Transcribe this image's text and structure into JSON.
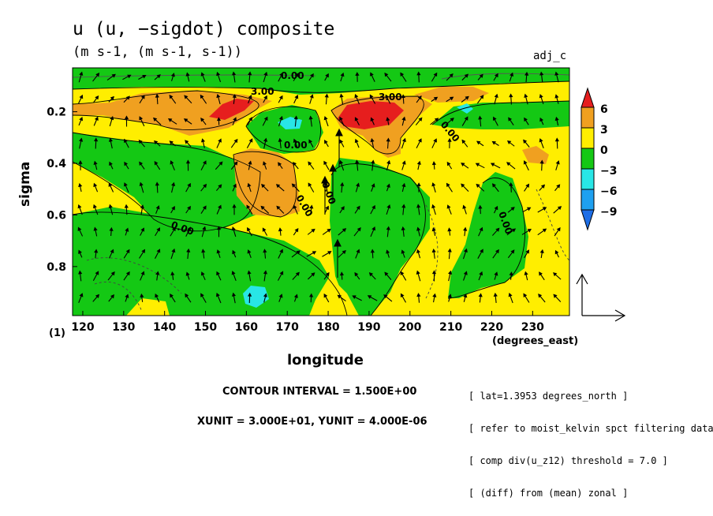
{
  "header": {
    "title": "u (u, −sigdot) composite",
    "subtitle": "(m s-1, (m s-1, s-1))",
    "tag": "adj_c"
  },
  "footer": {
    "contour_interval": "CONTOUR INTERVAL = 1.500E+00",
    "units": "XUNIT = 3.000E+01, YUNIT = 4.000E-06",
    "index_label": "(1)",
    "notes": [
      "[ lat=1.3953 degrees_north ]",
      "[ refer to moist_kelvin spct filtering data ]",
      "[ comp div(u_z12) threshold = 7.0 ]",
      "[ (diff) from (mean) zonal ]"
    ]
  },
  "colors": {
    "c_le_m9": "#1e6ee6",
    "c_m9_m6": "#1ea0f0",
    "c_m6_m3": "#28e6e6",
    "c_m3_0": "#14c814",
    "c_0_3": "#ffee00",
    "c_3_6": "#f0a020",
    "c_ge_6": "#e61e1e"
  },
  "chart_data": {
    "type": "heatmap",
    "xlabel": "longitude",
    "xunit": "(degrees_east)",
    "ylabel": "sigma",
    "xlim": [
      117.5,
      239
    ],
    "ylim": [
      0.99,
      0.03
    ],
    "xticks": [
      "120",
      "130",
      "140",
      "150",
      "160",
      "170",
      "180",
      "190",
      "200",
      "210",
      "220",
      "230"
    ],
    "yticks": [
      "0.2",
      "0.4",
      "0.6",
      "0.8"
    ],
    "colorbar_levels": [
      "6",
      "3",
      "0",
      "−3",
      "−6",
      "−9"
    ],
    "contour_labels": [
      "0.00",
      "3.00",
      "3.00",
      "0.00",
      "0.00",
      "0.00",
      "0.00",
      "0.00",
      "0.00"
    ],
    "vector_field": "u, −sigdot",
    "reference_vector": {
      "x": 30,
      "y": 4e-06
    }
  }
}
